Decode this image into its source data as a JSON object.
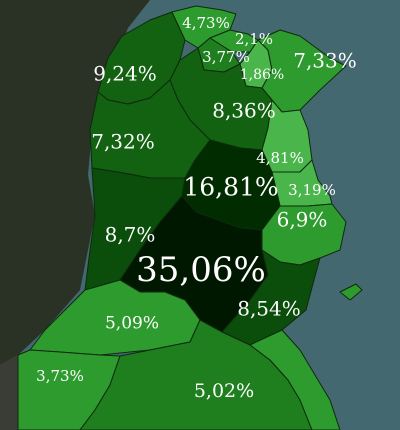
{
  "colors": {
    "sea": "#446870",
    "neighbor_land": "#2a3226",
    "outside_land": "#3a3c36",
    "shade_1": "#001700",
    "shade_2": "#002c00",
    "shade_3": "#0b4d0b",
    "shade_4": "#126212",
    "shade_5": "#1f7f1f",
    "shade_6": "#2e9b2e",
    "shade_7": "#4ab54a",
    "label": "#ffffff"
  },
  "regions": [
    {
      "id": "r1",
      "label": "4,73%"
    },
    {
      "id": "r2",
      "label": "2,1%"
    },
    {
      "id": "r3",
      "label": "3,77%"
    },
    {
      "id": "r4",
      "label": "1,86%"
    },
    {
      "id": "r5",
      "label": "7,33%"
    },
    {
      "id": "r6",
      "label": "9,24%"
    },
    {
      "id": "r7",
      "label": "8,36%"
    },
    {
      "id": "r8",
      "label": "7,32%"
    },
    {
      "id": "r9",
      "label": "4,81%"
    },
    {
      "id": "r10",
      "label": "16,81%"
    },
    {
      "id": "r11",
      "label": "3,19%"
    },
    {
      "id": "r12",
      "label": "8,7%"
    },
    {
      "id": "r13",
      "label": "6,9%"
    },
    {
      "id": "r14",
      "label": "35,06%"
    },
    {
      "id": "r15",
      "label": "8,54%"
    },
    {
      "id": "r16",
      "label": "5,09%"
    },
    {
      "id": "r17",
      "label": "3,73%"
    },
    {
      "id": "r18",
      "label": "5,02%"
    }
  ]
}
